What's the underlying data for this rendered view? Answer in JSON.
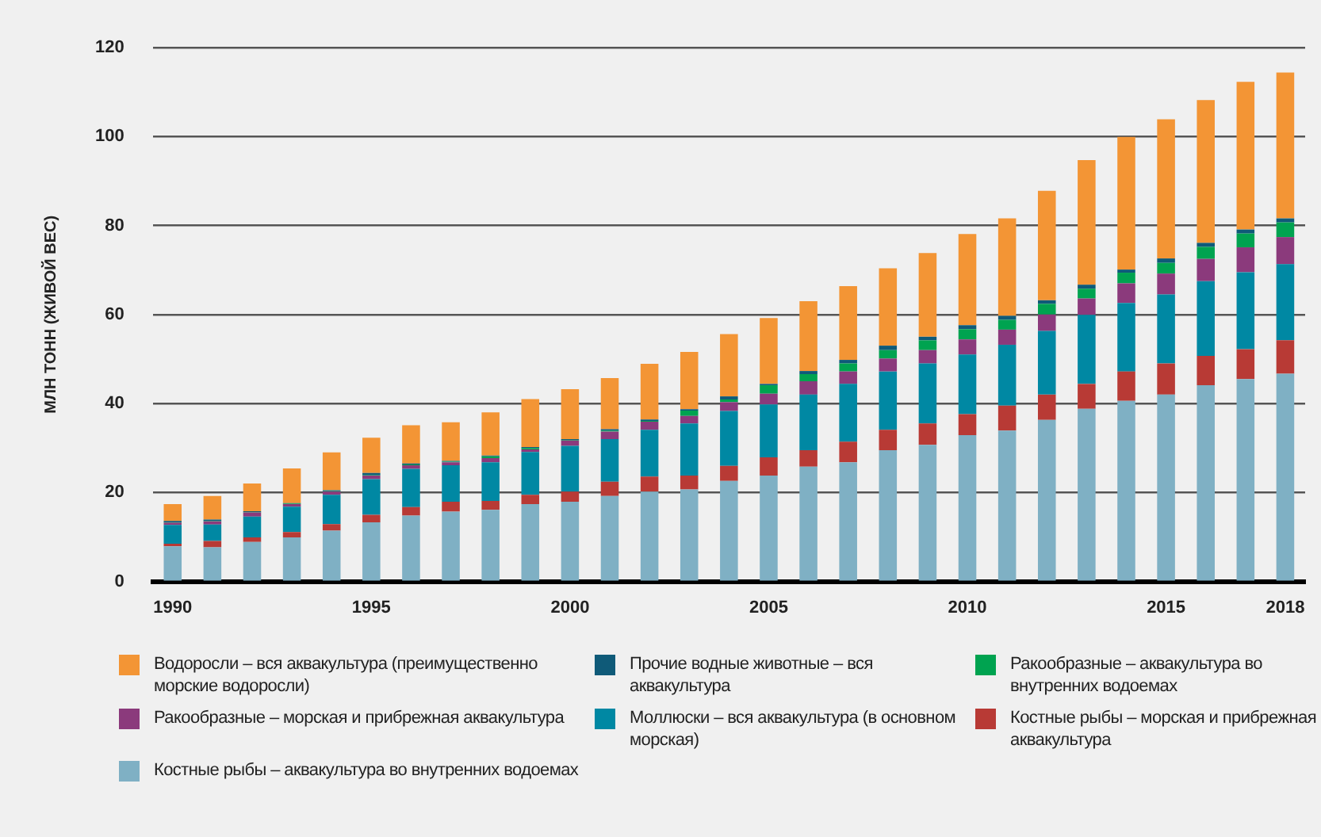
{
  "chart_data": {
    "type": "bar",
    "stacked": true,
    "ylabel": "МЛН ТОНН (ЖИВОЙ ВЕС)",
    "categories": [
      "1990",
      null,
      null,
      null,
      null,
      "1995",
      null,
      null,
      null,
      null,
      "2000",
      null,
      null,
      null,
      null,
      "2005",
      null,
      null,
      null,
      null,
      "2010",
      null,
      null,
      null,
      null,
      "2015",
      null,
      null,
      "2018"
    ],
    "ylim": [
      0,
      120
    ],
    "yticks": [
      0,
      20,
      40,
      60,
      80,
      100,
      120
    ],
    "grid": "y",
    "legend": "bottom",
    "series": [
      {
        "name": "Костные рыбы – аквакультура во внутренних водоемах",
        "color": "#7fb0c4",
        "values": [
          7.9,
          7.7,
          8.9,
          9.9,
          11.4,
          13.3,
          14.8,
          15.7,
          16.1,
          17.4,
          17.9,
          19.2,
          20.2,
          20.7,
          22.6,
          23.8,
          25.8,
          26.8,
          29.5,
          30.7,
          32.9,
          33.9,
          36.3,
          38.8,
          40.6,
          42.0,
          44.1,
          45.5,
          46.7
        ]
      },
      {
        "name": "Костные рыбы – морская и прибрежная аквакультура",
        "color": "#b83a35",
        "values": [
          0.6,
          1.4,
          1.0,
          1.2,
          1.5,
          1.7,
          1.9,
          2.2,
          2.0,
          2.1,
          2.3,
          3.2,
          3.4,
          3.1,
          3.4,
          4.1,
          3.7,
          4.6,
          4.6,
          4.8,
          4.7,
          5.6,
          5.7,
          5.6,
          6.6,
          7.0,
          6.6,
          6.7,
          7.5
        ]
      },
      {
        "name": "Моллюски – вся аквакультура (в основном морская)",
        "color": "#0088a3",
        "values": [
          4.2,
          3.7,
          4.7,
          5.7,
          6.6,
          8.0,
          8.6,
          8.2,
          8.7,
          9.6,
          10.3,
          9.6,
          10.5,
          11.7,
          12.3,
          11.9,
          12.5,
          13.0,
          13.1,
          13.5,
          13.4,
          13.7,
          14.3,
          15.5,
          15.4,
          15.5,
          16.8,
          17.3,
          17.1
        ]
      },
      {
        "name": "Ракообразные – морская и прибрежная аквакультура",
        "color": "#8b3a7c",
        "values": [
          0.5,
          0.7,
          0.9,
          0.6,
          0.7,
          0.8,
          0.8,
          0.7,
          0.9,
          0.6,
          1.2,
          1.7,
          1.8,
          1.7,
          2.0,
          2.4,
          3.0,
          2.8,
          2.9,
          3.0,
          3.4,
          3.4,
          3.7,
          3.7,
          4.4,
          4.7,
          5.0,
          5.6,
          6.1
        ]
      },
      {
        "name": "Ракообразные – аквакультура во внутренних водоемах",
        "color": "#00a350",
        "values": [
          0.1,
          0.1,
          0.1,
          0.1,
          0.1,
          0.1,
          0.2,
          0.1,
          0.4,
          0.3,
          0.1,
          0.2,
          0.2,
          1.2,
          0.6,
          1.9,
          1.6,
          1.8,
          1.9,
          2.2,
          2.3,
          2.2,
          2.4,
          2.2,
          2.4,
          2.4,
          2.7,
          3.1,
          3.3
        ]
      },
      {
        "name": "Прочие водные животные – вся аквакультура",
        "color": "#0f5a78",
        "values": [
          0.3,
          0.3,
          0.2,
          0.1,
          0.2,
          0.5,
          0.2,
          0.2,
          0.2,
          0.2,
          0.2,
          0.3,
          0.3,
          0.3,
          0.7,
          0.3,
          0.7,
          0.8,
          1.0,
          0.8,
          0.9,
          0.9,
          0.8,
          0.9,
          0.7,
          1.0,
          0.9,
          0.9,
          0.9
        ]
      },
      {
        "name": "Водоросли – вся аквакультура (преимущественно морские водоросли)",
        "color": "#f39535",
        "values": [
          3.8,
          5.3,
          6.2,
          7.8,
          8.5,
          7.9,
          8.6,
          8.7,
          9.7,
          10.8,
          11.2,
          11.5,
          12.5,
          12.9,
          14.0,
          14.8,
          15.7,
          16.6,
          17.4,
          18.8,
          20.5,
          21.9,
          24.6,
          28.0,
          29.8,
          31.3,
          32.1,
          33.2,
          32.8
        ]
      }
    ]
  }
}
